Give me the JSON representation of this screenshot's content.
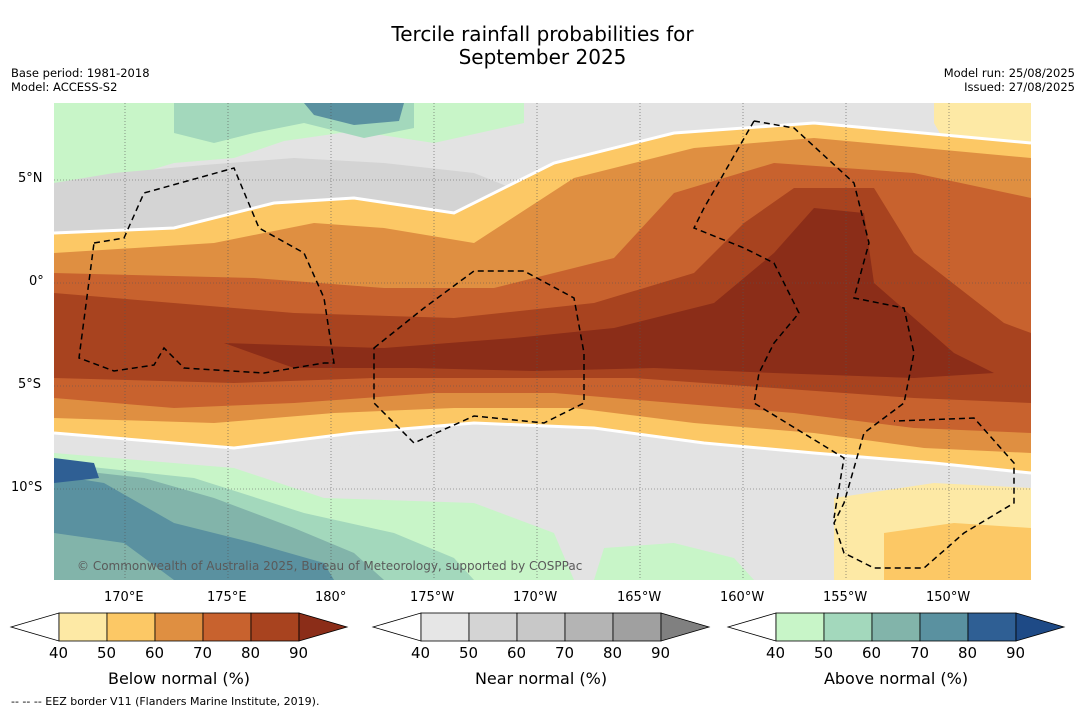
{
  "title": {
    "line1": "Tercile rainfall probabilities for",
    "line2": "September 2025"
  },
  "meta_left": {
    "base_period": "Base period: 1981-2018",
    "model": "Model: ACCESS-S2"
  },
  "meta_right": {
    "model_run": "Model run: 25/08/2025",
    "issued": "Issued: 27/08/2025"
  },
  "map": {
    "lat_labels": [
      "5°N",
      "0°",
      "5°S",
      "10°S"
    ],
    "lon_labels": [
      "170°E",
      "175°E",
      "180°",
      "175°W",
      "170°W",
      "165°W",
      "160°W",
      "155°W",
      "150°W"
    ],
    "credit": "© Commonwealth of Australia 2025, Bureau of Meteorology, supported by COSPPac",
    "colors": {
      "below": [
        "#ffffff",
        "#fde9a5",
        "#fcc865",
        "#df8f41",
        "#c8622e",
        "#a8431f",
        "#8b2d18"
      ],
      "near": [
        "#ffffff",
        "#e6e6e6",
        "#d4d4d4",
        "#c8c8c8",
        "#b4b4b4",
        "#a0a0a0",
        "#808080"
      ],
      "above": [
        "#ffffff",
        "#c8f5c8",
        "#a3d8bc",
        "#82b4aa",
        "#5a91a0",
        "#2f5f94",
        "#1e4a86"
      ]
    }
  },
  "colorbars": [
    {
      "label": "Below normal (%)",
      "ticks": [
        "40",
        "50",
        "60",
        "70",
        "80",
        "90"
      ]
    },
    {
      "label": "Near normal (%)",
      "ticks": [
        "40",
        "50",
        "60",
        "70",
        "80",
        "90"
      ]
    },
    {
      "label": "Above normal (%)",
      "ticks": [
        "40",
        "50",
        "60",
        "70",
        "80",
        "90"
      ]
    }
  ],
  "footer": "--  --  -- EEZ border V11 (Flanders Marine Institute, 2019)."
}
